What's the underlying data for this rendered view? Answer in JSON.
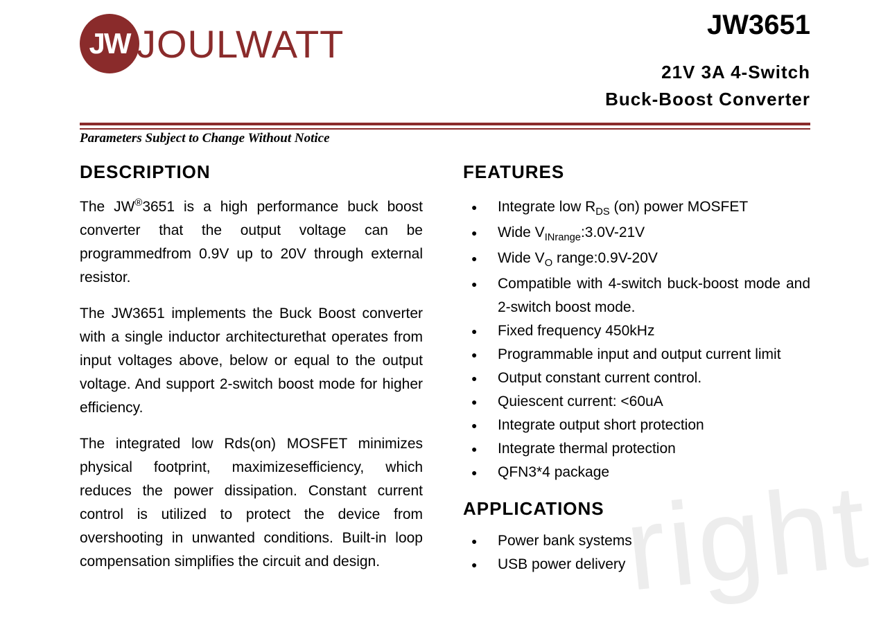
{
  "brand": {
    "logo_initials": "JW",
    "logo_wordmark": "JOULWATT",
    "logo_color": "#8a2b2b"
  },
  "header": {
    "part_number": "JW3651",
    "subtitle_line1": "21V  3A  4-Switch",
    "subtitle_line2": "Buck-Boost  Converter"
  },
  "notice": "Parameters Subject to Change Without Notice",
  "description": {
    "heading": "DESCRIPTION",
    "paragraphs": [
      "The JW®3651 is a high performance buck boost converter that the output voltage can be programmedfrom 0.9V up to 20V through external resistor.",
      "The JW3651 implements the Buck Boost converter with a single inductor architecturethat operates from input voltages above, below or equal to the output voltage. And support 2-switch boost mode for higher efficiency.",
      "The integrated low Rds(on) MOSFET minimizes physical footprint, maximizesefficiency, which reduces the power dissipation. Constant current control is utilized to protect the device from overshooting in unwanted conditions. Built-in loop compensation simplifies the circuit and design."
    ]
  },
  "features": {
    "heading": "FEATURES",
    "items": [
      "Integrate low R_DS (on) power MOSFET",
      "Wide V_INrange:3.0V-21V",
      "Wide V_O range:0.9V-20V",
      "Compatible with 4-switch buck-boost mode and 2-switch boost mode.",
      "Fixed frequency 450kHz",
      "Programmable input and output current limit",
      "Output constant current control.",
      "Quiescent current: <60uA",
      "Integrate output short protection",
      "Integrate thermal protection",
      "QFN3*4 package"
    ]
  },
  "applications": {
    "heading": "APPLICATIONS",
    "items": [
      "Power bank systems",
      "USB power delivery"
    ]
  },
  "watermark": "right",
  "colors": {
    "rule": "#8a2b2b",
    "text": "#000000",
    "background": "#ffffff",
    "watermark": "rgba(0,0,0,0.07)"
  },
  "typography": {
    "heading_fontsize_pt": 20,
    "body_fontsize_pt": 16,
    "part_number_fontsize_pt": 30
  }
}
